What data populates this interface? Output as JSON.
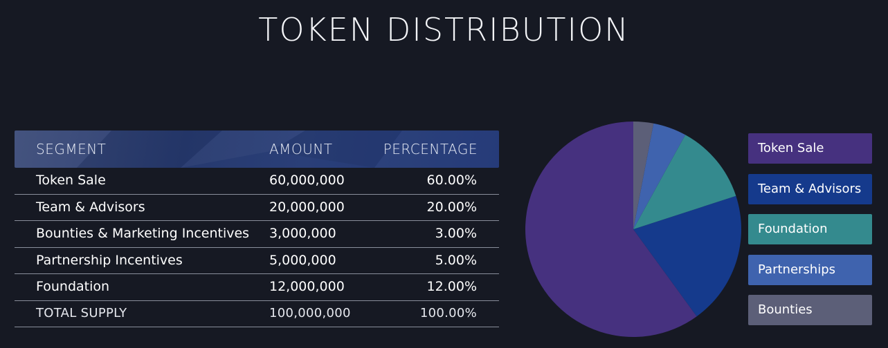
{
  "title": "TOKEN DISTRIBUTION",
  "table": {
    "headers": {
      "segment": "SEGMENT",
      "amount": "AMOUNT",
      "percentage": "PERCENTAGE"
    },
    "rows": [
      {
        "segment": "Token Sale",
        "amount": "60,000,000",
        "percentage": "60.00%"
      },
      {
        "segment": "Team & Advisors",
        "amount": "20,000,000",
        "percentage": "20.00%"
      },
      {
        "segment": "Bounties & Marketing Incentives",
        "amount": "3,000,000",
        "percentage": "3.00%"
      },
      {
        "segment": "Partnership Incentives",
        "amount": "5,000,000",
        "percentage": "5.00%"
      },
      {
        "segment": "Foundation",
        "amount": "12,000,000",
        "percentage": "12.00%"
      }
    ],
    "total": {
      "segment": "TOTAL SUPPLY",
      "amount": "100,000,000",
      "percentage": "100.00%"
    }
  },
  "colors": {
    "token_sale": "#46317f",
    "team_advisors": "#153a8c",
    "foundation": "#348a8e",
    "partnerships": "#3f63ae",
    "bounties": "#5c5f78"
  },
  "chart_data": {
    "type": "pie",
    "title": "",
    "slices": [
      {
        "name": "Token Sale",
        "value": 60,
        "color": "#46317f"
      },
      {
        "name": "Team & Advisors",
        "value": 20,
        "color": "#153a8c"
      },
      {
        "name": "Foundation",
        "value": 12,
        "color": "#348a8e"
      },
      {
        "name": "Partnerships",
        "value": 5,
        "color": "#3f63ae"
      },
      {
        "name": "Bounties",
        "value": 3,
        "color": "#5c5f78"
      }
    ],
    "start_angle_deg": 0,
    "direction": "counterclockwise",
    "legend": "right"
  }
}
